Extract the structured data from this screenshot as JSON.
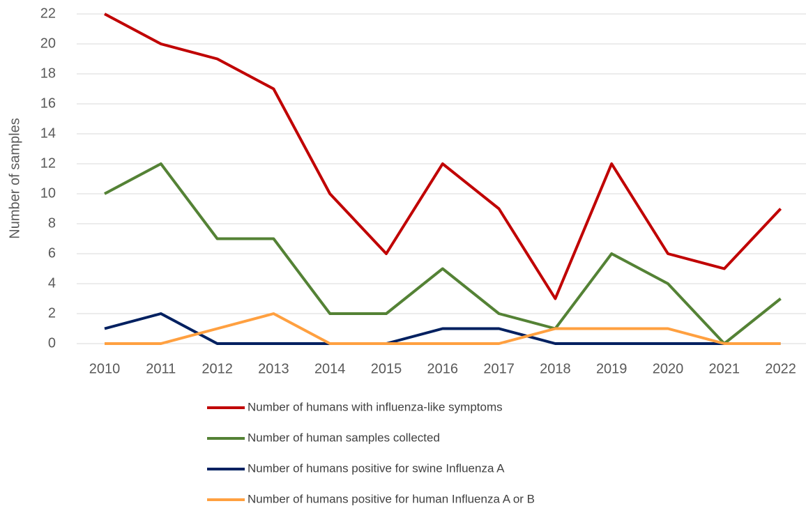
{
  "chart_data": {
    "type": "line",
    "y_label": "Number of samples",
    "categories": [
      "2010",
      "2011",
      "2012",
      "2013",
      "2014",
      "2015",
      "2016",
      "2017",
      "2018",
      "2019",
      "2020",
      "2021",
      "2022"
    ],
    "series": [
      {
        "name": "Number of humans with influenza-like symptoms",
        "color": "#c00000",
        "values": [
          22,
          20,
          19,
          17,
          10,
          6,
          12,
          9,
          3,
          12,
          6,
          5,
          9
        ]
      },
      {
        "name": "Number of human samples collected",
        "color": "#548235",
        "values": [
          10,
          12,
          7,
          7,
          2,
          2,
          5,
          2,
          1,
          6,
          4,
          0,
          3
        ]
      },
      {
        "name": "Number of humans positive for swine Influenza A",
        "color": "#002060",
        "values": [
          1,
          2,
          0,
          0,
          0,
          0,
          1,
          1,
          0,
          0,
          0,
          0,
          0
        ]
      },
      {
        "name": "Number of humans positive for human Influenza A or B",
        "color": "#ffa040",
        "values": [
          0,
          0,
          1,
          2,
          0,
          0,
          0,
          0,
          1,
          1,
          1,
          0,
          0
        ]
      }
    ],
    "ylim": [
      0,
      22
    ],
    "yticks": [
      0,
      2,
      4,
      6,
      8,
      10,
      12,
      14,
      16,
      18,
      20,
      22
    ],
    "grid": true
  }
}
